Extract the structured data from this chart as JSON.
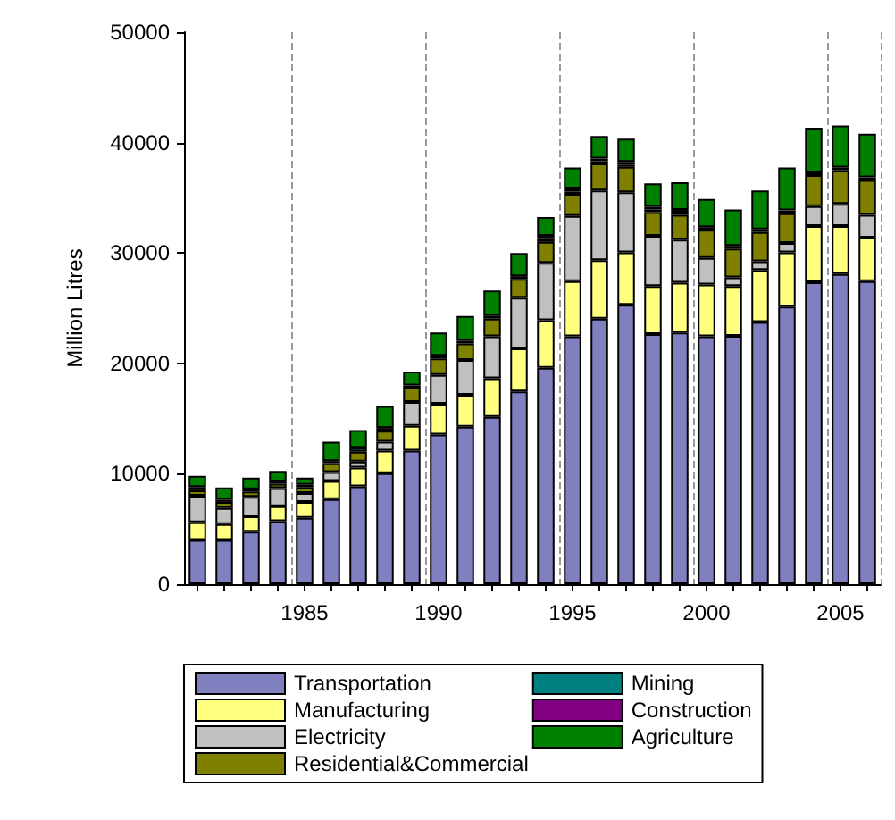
{
  "chart_data": {
    "type": "bar",
    "stacked": true,
    "ylabel": "Million Litres",
    "categories": [
      null,
      null,
      null,
      null,
      "1985",
      null,
      null,
      null,
      null,
      "1990",
      null,
      null,
      null,
      null,
      "1995",
      null,
      null,
      null,
      null,
      "2000",
      null,
      null,
      null,
      null,
      "2005",
      null
    ],
    "ylim": [
      0,
      50000
    ],
    "yticks": [
      0,
      10000,
      20000,
      30000,
      40000,
      50000
    ],
    "grid": "x",
    "legend": "bottom",
    "series": [
      {
        "name": "Transportation",
        "color": "#8080c0",
        "values": [
          4000,
          4000,
          4750,
          5700,
          6000,
          7700,
          8850,
          10050,
          12100,
          13550,
          14250,
          15150,
          17450,
          19600,
          22450,
          24050,
          25300,
          22650,
          22800,
          22450,
          22500,
          23750,
          25150,
          27350,
          28100,
          27450
        ]
      },
      {
        "name": "Manufacturing",
        "color": "#ffff80",
        "values": [
          1600,
          1450,
          1400,
          1350,
          1450,
          1650,
          1700,
          2050,
          2250,
          2800,
          2900,
          3500,
          3900,
          4300,
          5000,
          5300,
          4750,
          4350,
          4500,
          4700,
          4500,
          4700,
          4900,
          5100,
          4350,
          3950
        ]
      },
      {
        "name": "Electricity",
        "color": "#c0c0c0",
        "values": [
          2400,
          1450,
          1750,
          1650,
          800,
          800,
          550,
          800,
          2150,
          2600,
          3150,
          3800,
          4600,
          5200,
          5900,
          6300,
          5450,
          4550,
          3900,
          2400,
          800,
          800,
          850,
          1800,
          2000,
          2050
        ]
      },
      {
        "name": "Residential&Commercial",
        "color": "#808000",
        "values": [
          500,
          550,
          500,
          400,
          550,
          800,
          900,
          1000,
          1300,
          1500,
          1500,
          1600,
          1700,
          1900,
          2000,
          2450,
          2300,
          2150,
          2250,
          2550,
          2600,
          2650,
          2700,
          2800,
          3050,
          3150
        ]
      },
      {
        "name": "Mining",
        "color": "#008080",
        "values": [
          300,
          200,
          200,
          200,
          200,
          200,
          350,
          250,
          200,
          250,
          250,
          250,
          250,
          250,
          200,
          200,
          200,
          250,
          200,
          250,
          250,
          250,
          250,
          250,
          250,
          250
        ]
      },
      {
        "name": "Construction",
        "color": "#800080",
        "values": [
          null,
          null,
          null,
          null,
          null,
          null,
          null,
          null,
          null,
          null,
          null,
          null,
          null,
          300,
          300,
          250,
          250,
          250,
          250,
          null,
          null,
          null,
          null,
          null,
          null,
          null
        ]
      },
      {
        "name": "Agriculture",
        "color": "#008000",
        "values": [
          1000,
          1100,
          1050,
          950,
          650,
          1750,
          1600,
          2000,
          1250,
          2100,
          2250,
          2300,
          2100,
          1700,
          1900,
          2050,
          2100,
          2100,
          2500,
          2550,
          3300,
          3500,
          3900,
          4050,
          3800,
          3950
        ]
      }
    ]
  }
}
